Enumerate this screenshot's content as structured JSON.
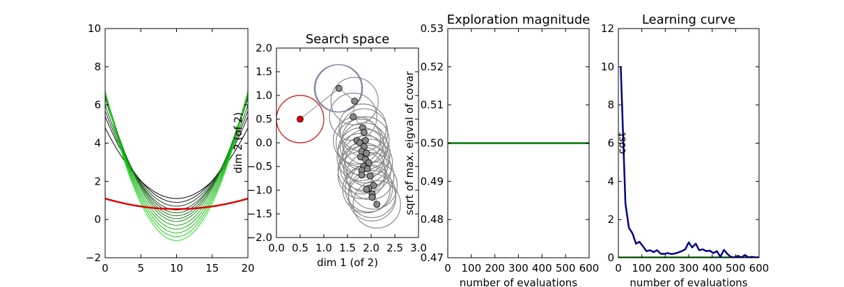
{
  "chart_data": [
    {
      "type": "line",
      "title": "",
      "xlabel": "",
      "ylabel": "",
      "xlim": [
        0,
        20
      ],
      "ylim": [
        -2,
        10
      ],
      "xticks": [
        "0",
        "5",
        "10",
        "15",
        "20"
      ],
      "yticks": [
        "−2",
        "0",
        "2",
        "4",
        "6",
        "8",
        "10"
      ],
      "center": 10,
      "series": [
        {
          "color": "#dd0000",
          "a": 0.0055,
          "c": 0.55,
          "thick": true
        },
        {
          "color": "#000000",
          "a": 0.037,
          "c": 1.1
        },
        {
          "color": "#111111",
          "a": 0.045,
          "c": 0.9
        },
        {
          "color": "#1a3a1a",
          "a": 0.05,
          "c": 0.7
        },
        {
          "color": "#1f4f1f",
          "a": 0.055,
          "c": 0.5
        },
        {
          "color": "#205f20",
          "a": 0.06,
          "c": 0.35
        },
        {
          "color": "#1f6f1f",
          "a": 0.063,
          "c": 0.2
        },
        {
          "color": "#1c7f1c",
          "a": 0.066,
          "c": 0.05
        },
        {
          "color": "#1a8f1a",
          "a": 0.068,
          "c": -0.1
        },
        {
          "color": "#18a018",
          "a": 0.07,
          "c": -0.3
        },
        {
          "color": "#15b015",
          "a": 0.072,
          "c": -0.5
        },
        {
          "color": "#12c012",
          "a": 0.074,
          "c": -0.7
        },
        {
          "color": "#0fd00f",
          "a": 0.076,
          "c": -0.9
        },
        {
          "color": "#22dd22",
          "a": 0.078,
          "c": -1.1
        }
      ]
    },
    {
      "type": "scatter",
      "title": "Search space",
      "xlabel": "dim 1 (of 2)",
      "ylabel": "dim 2 (of 2)",
      "xlim": [
        0,
        3
      ],
      "ylim": [
        -2,
        2
      ],
      "xticks": [
        "0.0",
        "0.5",
        "1.0",
        "1.5",
        "2.0",
        "2.5",
        "3.0"
      ],
      "yticks": [
        "−2.0",
        "−1.5",
        "−1.0",
        "−0.5",
        "0.0",
        "0.5",
        "1.0",
        "1.5",
        "2.0"
      ],
      "radius": 0.5,
      "initial_point": {
        "x": 0.5,
        "y": 0.5,
        "color": "#dd0000"
      },
      "highlight_circle": {
        "x": 1.3,
        "y": 1.15,
        "color": "#7777aa"
      },
      "points": [
        [
          1.32,
          1.15
        ],
        [
          1.65,
          0.88
        ],
        [
          1.62,
          0.55
        ],
        [
          1.82,
          0.32
        ],
        [
          1.85,
          0.22
        ],
        [
          1.7,
          0.05
        ],
        [
          1.76,
          0.0
        ],
        [
          1.85,
          -0.08
        ],
        [
          1.8,
          -0.18
        ],
        [
          1.9,
          -0.22
        ],
        [
          1.78,
          -0.3
        ],
        [
          1.88,
          -0.35
        ],
        [
          1.95,
          -0.42
        ],
        [
          1.84,
          -0.5
        ],
        [
          1.8,
          -0.58
        ],
        [
          1.92,
          -0.55
        ],
        [
          1.8,
          -0.68
        ],
        [
          1.98,
          -0.7
        ],
        [
          2.05,
          -0.9
        ],
        [
          1.95,
          -0.96
        ],
        [
          1.9,
          -0.98
        ],
        [
          2.02,
          -1.08
        ],
        [
          2.02,
          -1.15
        ],
        [
          2.12,
          -1.3
        ],
        [
          1.88,
          0.05
        ]
      ]
    },
    {
      "type": "line",
      "title": "Exploration magnitude",
      "xlabel": "number of evaluations",
      "ylabel": "sqrt of max. eigval of covar",
      "xlim": [
        0,
        600
      ],
      "ylim": [
        0.47,
        0.53
      ],
      "xticks": [
        "0",
        "100",
        "200",
        "300",
        "400",
        "500",
        "600"
      ],
      "yticks": [
        "0.47",
        "0.48",
        "0.49",
        "0.50",
        "0.51",
        "0.52",
        "0.53"
      ],
      "series": [
        {
          "color": "#007700",
          "x": [
            0,
            600
          ],
          "y": [
            0.5,
            0.5
          ]
        }
      ]
    },
    {
      "type": "line",
      "title": "Learning curve",
      "xlabel": "number of evaluations",
      "ylabel": "cost",
      "xlim": [
        0,
        600
      ],
      "ylim": [
        0,
        12.2
      ],
      "xticks": [
        "0",
        "100",
        "200",
        "300",
        "400",
        "500",
        "600"
      ],
      "yticks": [
        "0",
        "2",
        "4",
        "6",
        "8",
        "10",
        "12"
      ],
      "series": [
        {
          "color": "#000088",
          "x": [
            10,
            30,
            45,
            60,
            75,
            90,
            105,
            120,
            135,
            150,
            165,
            180,
            195,
            210,
            225,
            240,
            255,
            270,
            285,
            300,
            315,
            330,
            345,
            360,
            375,
            390,
            405,
            420,
            435,
            450,
            465,
            480,
            495,
            510,
            525,
            540,
            555,
            570,
            585,
            600
          ],
          "y": [
            10.2,
            2.9,
            1.6,
            1.3,
            0.75,
            0.85,
            0.6,
            0.35,
            0.4,
            0.3,
            0.4,
            0.22,
            0.2,
            0.25,
            0.2,
            0.22,
            0.28,
            0.35,
            0.45,
            0.82,
            0.55,
            0.75,
            0.4,
            0.45,
            0.35,
            0.38,
            0.25,
            0.35,
            0.05,
            0.42,
            0.2,
            0.05,
            0.02,
            0.1,
            0.02,
            0.15,
            0.02,
            0.05,
            0.02,
            0.02
          ]
        },
        {
          "color": "#007700",
          "x": [
            0,
            600
          ],
          "y": [
            0.02,
            0.02
          ]
        }
      ]
    }
  ]
}
